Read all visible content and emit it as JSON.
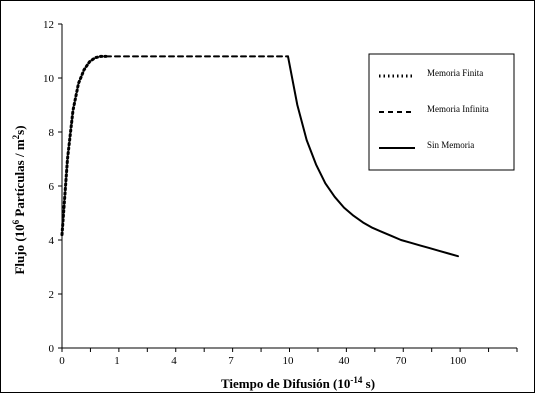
{
  "chart_data": {
    "type": "line",
    "xlabel_main": "Tiempo de Difusión (10",
    "xlabel_sup": "-14",
    "xlabel_end": " s)",
    "ylabel_main": "Flujo (10",
    "ylabel_sup1": "6",
    "ylabel_mid": " Partículas / m",
    "ylabel_sup2": "2",
    "ylabel_end": "s)",
    "x_tick_labels": [
      "0",
      "1",
      "4",
      "7",
      "10",
      "40",
      "70",
      "100"
    ],
    "y_ticks": [
      0,
      2,
      4,
      6,
      8,
      10,
      12
    ],
    "ylim": [
      0,
      12
    ],
    "grid": false,
    "legend_position": "top-right",
    "series": [
      {
        "name": "Memoria Finita",
        "style": "dotted",
        "x": [
          0,
          0.1,
          0.2,
          0.3,
          0.4,
          0.5,
          0.6,
          0.7,
          0.8
        ],
        "y": [
          4.2,
          7.0,
          8.8,
          9.8,
          10.3,
          10.6,
          10.75,
          10.8,
          10.8
        ]
      },
      {
        "name": "Memoria Infinita",
        "style": "dashed",
        "x": [
          0.8,
          1,
          4,
          7,
          10
        ],
        "y": [
          10.8,
          10.8,
          10.8,
          10.8,
          10.8
        ]
      },
      {
        "name": "Sin Memoria",
        "style": "solid",
        "x": [
          10,
          15,
          20,
          25,
          30,
          35,
          40,
          45,
          50,
          55,
          60,
          65,
          70,
          75,
          80,
          85,
          90,
          95,
          100
        ],
        "y": [
          10.8,
          9.0,
          7.7,
          6.8,
          6.1,
          5.6,
          5.2,
          4.9,
          4.65,
          4.45,
          4.3,
          4.15,
          4.0,
          3.9,
          3.8,
          3.7,
          3.6,
          3.5,
          3.4
        ]
      }
    ]
  }
}
